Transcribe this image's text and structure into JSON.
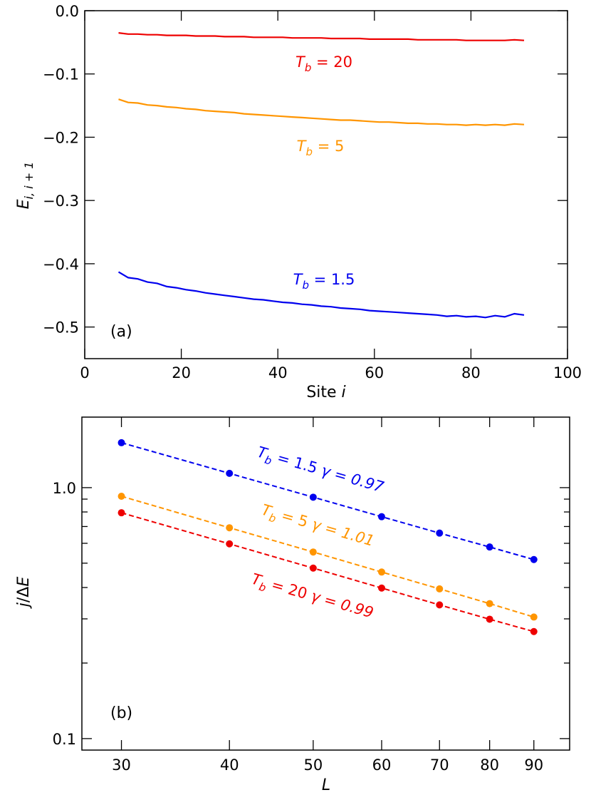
{
  "chart_data": [
    {
      "type": "line",
      "panel_label": "(a)",
      "xlabel": "Site",
      "xlabel_var": "i",
      "ylabel_var": "E",
      "ylabel_sub": "i, i + 1",
      "xlim": [
        0,
        100
      ],
      "ylim": [
        -0.55,
        0.0
      ],
      "xticks": [
        0,
        20,
        40,
        60,
        80,
        100
      ],
      "xtick_labels": [
        "0",
        "20",
        "40",
        "60",
        "80",
        "100"
      ],
      "yticks": [
        0.0,
        -0.1,
        -0.2,
        -0.3,
        -0.4,
        -0.5
      ],
      "ytick_labels": [
        "0.0",
        "−0.1",
        "−0.2",
        "−0.3",
        "−0.4",
        "−0.5"
      ],
      "grid": false,
      "x": [
        7,
        9,
        11,
        13,
        15,
        17,
        19,
        21,
        23,
        25,
        27,
        29,
        31,
        33,
        35,
        37,
        39,
        41,
        43,
        45,
        47,
        49,
        51,
        53,
        55,
        57,
        59,
        61,
        63,
        65,
        67,
        69,
        71,
        73,
        75,
        77,
        79,
        81,
        83,
        85,
        87,
        89,
        91
      ],
      "series": [
        {
          "label_var": "T",
          "label_sub": "b",
          "label_value": "= 20",
          "color": "#ee0000",
          "values": [
            -0.035,
            -0.037,
            -0.037,
            -0.038,
            -0.038,
            -0.039,
            -0.039,
            -0.039,
            -0.04,
            -0.04,
            -0.04,
            -0.041,
            -0.041,
            -0.041,
            -0.042,
            -0.042,
            -0.042,
            -0.042,
            -0.043,
            -0.043,
            -0.043,
            -0.043,
            -0.044,
            -0.044,
            -0.044,
            -0.044,
            -0.045,
            -0.045,
            -0.045,
            -0.045,
            -0.045,
            -0.046,
            -0.046,
            -0.046,
            -0.046,
            -0.046,
            -0.047,
            -0.047,
            -0.047,
            -0.047,
            -0.047,
            -0.046,
            -0.047
          ]
        },
        {
          "label_var": "T",
          "label_sub": "b",
          "label_value": "= 5",
          "color": "#ff9500",
          "values": [
            -0.14,
            -0.145,
            -0.146,
            -0.149,
            -0.15,
            -0.152,
            -0.153,
            -0.155,
            -0.156,
            -0.158,
            -0.159,
            -0.16,
            -0.161,
            -0.163,
            -0.164,
            -0.165,
            -0.166,
            -0.167,
            -0.168,
            -0.169,
            -0.17,
            -0.171,
            -0.172,
            -0.173,
            -0.173,
            -0.174,
            -0.175,
            -0.176,
            -0.176,
            -0.177,
            -0.178,
            -0.178,
            -0.179,
            -0.179,
            -0.18,
            -0.18,
            -0.181,
            -0.18,
            -0.181,
            -0.18,
            -0.181,
            -0.179,
            -0.18
          ]
        },
        {
          "label_var": "T",
          "label_sub": "b",
          "label_value": "= 1.5",
          "color": "#0000ee",
          "values": [
            -0.413,
            -0.422,
            -0.424,
            -0.429,
            -0.431,
            -0.436,
            -0.438,
            -0.441,
            -0.443,
            -0.446,
            -0.448,
            -0.45,
            -0.452,
            -0.454,
            -0.456,
            -0.457,
            -0.459,
            -0.461,
            -0.462,
            -0.464,
            -0.465,
            -0.467,
            -0.468,
            -0.47,
            -0.471,
            -0.472,
            -0.474,
            -0.475,
            -0.476,
            -0.477,
            -0.478,
            -0.479,
            -0.48,
            -0.481,
            -0.483,
            -0.482,
            -0.484,
            -0.483,
            -0.485,
            -0.482,
            -0.484,
            -0.479,
            -0.481
          ]
        }
      ]
    },
    {
      "type": "scatter",
      "panel_label": "(b)",
      "xlabel_var": "L",
      "ylabel_var": "j",
      "ylabel_rest": "/Δ",
      "ylabel_var2": "E",
      "xscale": "log",
      "yscale": "log",
      "xlim": [
        27,
        99
      ],
      "ylim": [
        0.09,
        1.91
      ],
      "xticks": [
        30,
        40,
        50,
        60,
        70,
        80,
        90
      ],
      "xtick_labels": [
        "30",
        "40",
        "50",
        "60",
        "70",
        "80",
        "90"
      ],
      "yticks": [
        0.1,
        1.0
      ],
      "ytick_labels": [
        "0.1",
        "1.0"
      ],
      "grid": false,
      "line_style": "dashed with markers",
      "x": [
        30,
        40,
        50,
        60,
        70,
        80,
        90
      ],
      "series": [
        {
          "label_var": "T",
          "label_sub": "b",
          "label_value": "= 1.5",
          "gamma": "γ = 0.97",
          "color": "#0000ee",
          "values": [
            1.51,
            1.14,
            0.916,
            0.766,
            0.659,
            0.58,
            0.517
          ]
        },
        {
          "label_var": "T",
          "label_sub": "b",
          "label_value": "= 5",
          "gamma": "γ = 1.01",
          "color": "#ff9500",
          "values": [
            0.924,
            0.692,
            0.554,
            0.461,
            0.395,
            0.345,
            0.305
          ]
        },
        {
          "label_var": "T",
          "label_sub": "b",
          "label_value": "= 20",
          "gamma": "γ = 0.99",
          "color": "#ee0000",
          "values": [
            0.794,
            0.597,
            0.478,
            0.398,
            0.341,
            0.299,
            0.267
          ]
        }
      ]
    }
  ]
}
